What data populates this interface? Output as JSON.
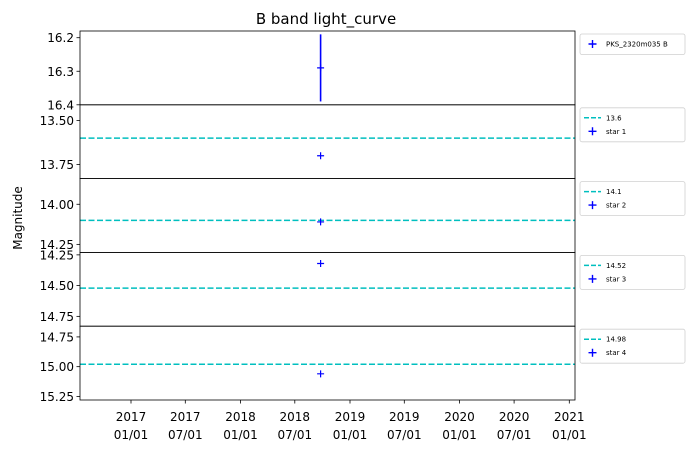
{
  "title": "B band light_curve",
  "ylabel": "Magnitude",
  "chart_data": {
    "type": "scatter",
    "title": "B band light_curve",
    "ylabel": "Magnitude",
    "x_ticks": [
      "2017\n01/01",
      "2017\n07/01",
      "2018\n01/01",
      "2018\n07/01",
      "2019\n01/01",
      "2019\n07/01",
      "2020\n01/01",
      "2020\n07/01",
      "2021\n01/01"
    ],
    "x_tick_values": [
      "2017-01-01",
      "2017-07-01",
      "2018-01-01",
      "2018-07-01",
      "2019-01-01",
      "2019-07-01",
      "2020-01-01",
      "2020-07-01",
      "2021-01-01"
    ],
    "xlim": [
      "2016-07-15",
      "2021-01-20"
    ],
    "y_inverted": true,
    "panels": [
      {
        "ylim": [
          16.4,
          16.18
        ],
        "yticks": [
          16.2,
          16.3,
          16.4
        ],
        "ytick_labels": [
          "16.2",
          "16.3",
          "16.4"
        ],
        "series": [
          {
            "name": "PKS_2320m035 B",
            "type": "points",
            "color": "#0000ff",
            "points": [
              {
                "x": "2018-09-25",
                "y": 16.29,
                "yerr": 0.1
              }
            ]
          }
        ]
      },
      {
        "ylim": [
          13.83,
          13.41
        ],
        "yticks": [
          13.5,
          13.75
        ],
        "ytick_labels": [
          "13.50",
          "13.75"
        ],
        "series": [
          {
            "name": "13.6",
            "type": "hline",
            "color": "#00bfbf",
            "y": 13.6
          },
          {
            "name": "star 1",
            "type": "points",
            "color": "#0000ff",
            "points": [
              {
                "x": "2018-09-25",
                "y": 13.7
              }
            ]
          }
        ]
      },
      {
        "ylim": [
          14.3,
          13.84
        ],
        "yticks": [
          14.0,
          14.25
        ],
        "ytick_labels": [
          "14.00",
          "14.25"
        ],
        "series": [
          {
            "name": "14.1",
            "type": "hline",
            "color": "#00bfbf",
            "y": 14.1
          },
          {
            "name": "star 2",
            "type": "points",
            "color": "#0000ff",
            "points": [
              {
                "x": "2018-09-25",
                "y": 14.11
              }
            ]
          }
        ]
      },
      {
        "ylim": [
          14.83,
          14.23
        ],
        "yticks": [
          14.25,
          14.5,
          14.75
        ],
        "ytick_labels": [
          "14.25",
          "14.50",
          "14.75"
        ],
        "series": [
          {
            "name": "14.52",
            "type": "hline",
            "color": "#00bfbf",
            "y": 14.52
          },
          {
            "name": "star 3",
            "type": "points",
            "color": "#0000ff",
            "points": [
              {
                "x": "2018-09-25",
                "y": 14.32
              }
            ]
          }
        ]
      },
      {
        "ylim": [
          15.28,
          14.66
        ],
        "yticks": [
          14.75,
          15.0,
          15.25
        ],
        "ytick_labels": [
          "14.75",
          "15.00",
          "15.25"
        ],
        "series": [
          {
            "name": "14.98",
            "type": "hline",
            "color": "#00bfbf",
            "y": 14.98
          },
          {
            "name": "star 4",
            "type": "points",
            "color": "#0000ff",
            "points": [
              {
                "x": "2018-09-25",
                "y": 15.06
              }
            ]
          }
        ]
      }
    ]
  }
}
